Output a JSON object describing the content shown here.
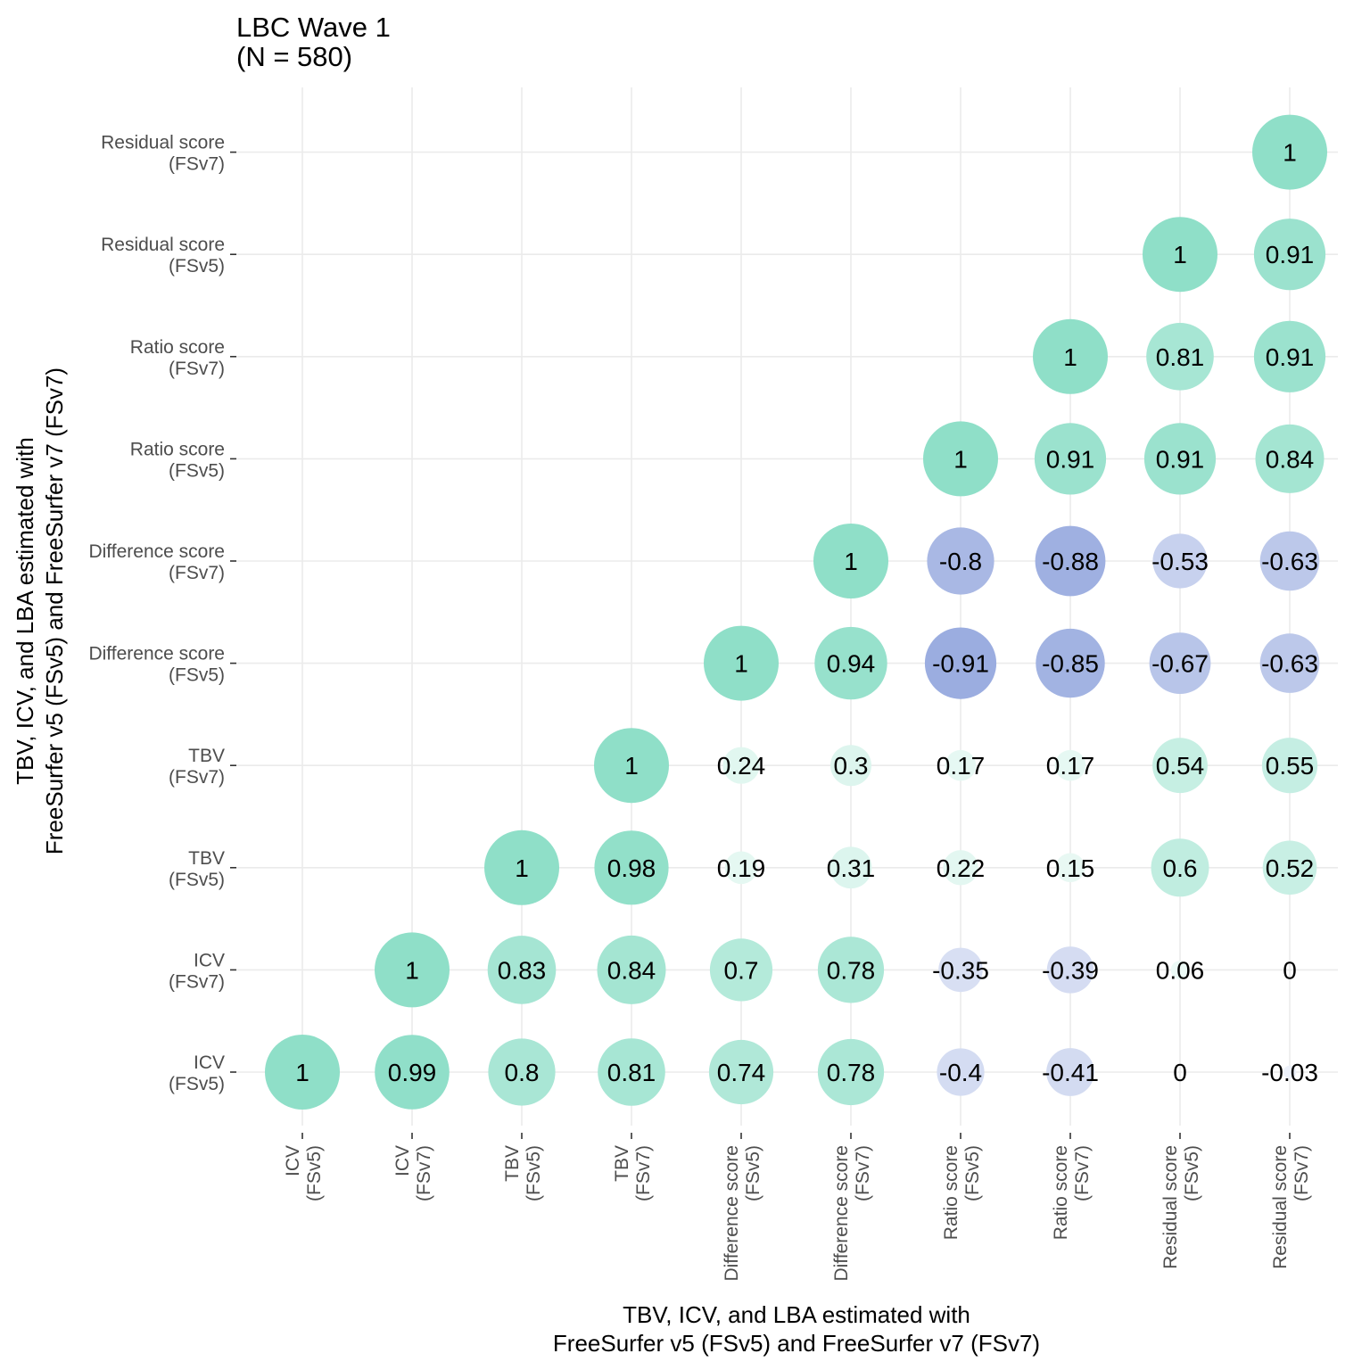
{
  "chart_data": {
    "type": "correlation-bubble-matrix",
    "title": [
      "LBC Wave 1",
      "(N = 580)"
    ],
    "xlabel": [
      "TBV, ICV, and LBA estimated with",
      "FreeSurfer v5 (FSv5) and FreeSurfer v7 (FSv7)"
    ],
    "ylabel": [
      "TBV, ICV, and LBA estimated with",
      "FreeSurfer v5 (FSv5) and FreeSurfer v7 (FSv7)"
    ],
    "variables": [
      [
        "ICV",
        "(FSv5)"
      ],
      [
        "ICV",
        "(FSv7)"
      ],
      [
        "TBV",
        "(FSv5)"
      ],
      [
        "TBV",
        "(FSv7)"
      ],
      [
        "Difference score",
        "(FSv5)"
      ],
      [
        "Difference score",
        "(FSv7)"
      ],
      [
        "Ratio score",
        "(FSv5)"
      ],
      [
        "Ratio score",
        "(FSv7)"
      ],
      [
        "Residual score",
        "(FSv5)"
      ],
      [
        "Residual score",
        "(FSv7)"
      ]
    ],
    "matrix": [
      [
        1,
        0.99,
        0.8,
        0.81,
        0.74,
        0.78,
        -0.4,
        -0.41,
        0,
        -0.03
      ],
      [
        null,
        1,
        0.83,
        0.84,
        0.7,
        0.78,
        -0.35,
        -0.39,
        0.06,
        0
      ],
      [
        null,
        null,
        1,
        0.98,
        0.19,
        0.31,
        0.22,
        0.15,
        0.6,
        0.52
      ],
      [
        null,
        null,
        null,
        1,
        0.24,
        0.3,
        0.17,
        0.17,
        0.54,
        0.55
      ],
      [
        null,
        null,
        null,
        null,
        1,
        0.94,
        -0.91,
        -0.85,
        -0.67,
        -0.63
      ],
      [
        null,
        null,
        null,
        null,
        null,
        1,
        -0.8,
        -0.88,
        -0.53,
        -0.63
      ],
      [
        null,
        null,
        null,
        null,
        null,
        null,
        1,
        0.91,
        0.91,
        0.84
      ],
      [
        null,
        null,
        null,
        null,
        null,
        null,
        null,
        1,
        0.81,
        0.91
      ],
      [
        null,
        null,
        null,
        null,
        null,
        null,
        null,
        null,
        1,
        0.91
      ],
      [
        null,
        null,
        null,
        null,
        null,
        null,
        null,
        null,
        null,
        1
      ]
    ],
    "colors": {
      "positive": "#8fdfc8",
      "negative": "#8fa3dc",
      "grid": "#ebebeb",
      "tick_label": "#4d4d4d"
    },
    "grid": true,
    "legend": "none"
  }
}
